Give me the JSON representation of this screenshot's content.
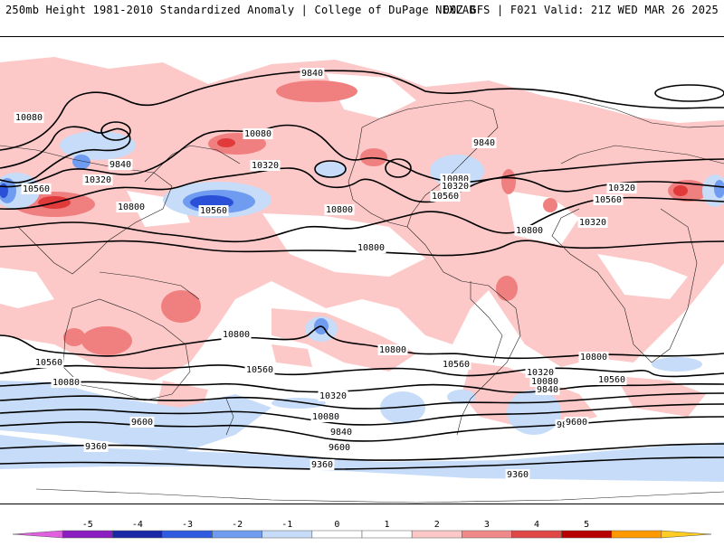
{
  "header": {
    "left_title": "250mb Height 1981-2010 Standardized Anomaly | College of DuPage NEXLAB",
    "right_title": "00Z GFS | F021 Valid: 21Z WED MAR 26 2025"
  },
  "map": {
    "projection": "global cylindrical",
    "contour_interval_m": 240,
    "contour_color": "#000000",
    "contour_levels_labeled": [
      "9360",
      "9600",
      "9840",
      "10080",
      "10320",
      "10560",
      "10800"
    ],
    "labels": [
      {
        "text": "9840"
      },
      {
        "text": "10080"
      },
      {
        "text": "9840"
      },
      {
        "text": "10080"
      },
      {
        "text": "10320"
      },
      {
        "text": "10560"
      },
      {
        "text": "10320"
      },
      {
        "text": "10560"
      },
      {
        "text": "10800"
      },
      {
        "text": "10800"
      },
      {
        "text": "9840"
      },
      {
        "text": "10080"
      },
      {
        "text": "10320"
      },
      {
        "text": "10560"
      },
      {
        "text": "10320"
      },
      {
        "text": "10560"
      },
      {
        "text": "10800"
      },
      {
        "text": "10800"
      },
      {
        "text": "10560"
      },
      {
        "text": "10080"
      },
      {
        "text": "10560"
      },
      {
        "text": "10800"
      },
      {
        "text": "10560"
      },
      {
        "text": "10800"
      },
      {
        "text": "10320"
      },
      {
        "text": "10080"
      },
      {
        "text": "9840"
      },
      {
        "text": "9840"
      },
      {
        "text": "9600"
      },
      {
        "text": "10320"
      },
      {
        "text": "10080"
      },
      {
        "text": "9840"
      },
      {
        "text": "9600"
      },
      {
        "text": "9600"
      },
      {
        "text": "9360"
      },
      {
        "text": "9360"
      },
      {
        "text": "9360"
      },
      {
        "text": "10560"
      },
      {
        "text": "10800"
      },
      {
        "text": "10320"
      }
    ]
  },
  "colorbar": {
    "ticks": [
      "-5",
      "-4",
      "-3",
      "-2",
      "-1",
      "0",
      "1",
      "2",
      "3",
      "4",
      "5"
    ],
    "colors": [
      "#e060e0",
      "#8a1ec0",
      "#1a28a8",
      "#2e5be0",
      "#6f9cf0",
      "#c6dcf8",
      "#ffffff",
      "#ffffff",
      "#fcc8c8",
      "#f08a8a",
      "#e04848",
      "#b80000",
      "#ff9900",
      "#ffcc22"
    ]
  },
  "anomaly_colors": {
    "pos1": "#fcc8c8",
    "pos2": "#f08080",
    "pos3": "#e03a3a",
    "neg1": "#c6dcf8",
    "neg2": "#6f9cf0",
    "neg3": "#2a50d8"
  }
}
